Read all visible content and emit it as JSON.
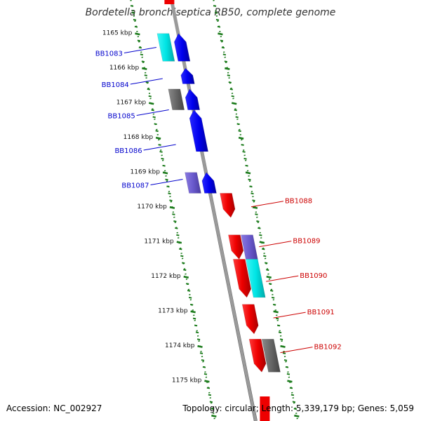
{
  "title": "Bordetella bronchiseptica RB50, complete genome",
  "footer": {
    "accession": "Accession: NC_002927",
    "summary": "Topology: circular; Length: 5,339,179 bp; Genes: 5,059"
  },
  "colors": {
    "forward_label": "#0000cc",
    "reverse_label": "#cc0000",
    "blue": "#0000ee",
    "cyan": "#00e5e5",
    "gray": "#666666",
    "purple": "#6a5acd",
    "red": "#ee0000",
    "tick_green": "#1a7a1a",
    "backbone": "#888888"
  },
  "scale": {
    "start_kbp": 1164.4,
    "kbp_per_step": 1,
    "ticks": [
      {
        "kbp": 1165,
        "label": "1165 kbp"
      },
      {
        "kbp": 1166,
        "label": "1166 kbp"
      },
      {
        "kbp": 1167,
        "label": "1167 kbp"
      },
      {
        "kbp": 1168,
        "label": "1168 kbp"
      },
      {
        "kbp": 1169,
        "label": "1169 kbp"
      },
      {
        "kbp": 1170,
        "label": "1170 kbp"
      },
      {
        "kbp": 1171,
        "label": "1171 kbp"
      },
      {
        "kbp": 1172,
        "label": "1172 kbp"
      },
      {
        "kbp": 1173,
        "label": "1173 kbp"
      },
      {
        "kbp": 1174,
        "label": "1174 kbp"
      },
      {
        "kbp": 1175,
        "label": "1175 kbp"
      }
    ]
  },
  "gene_labels": {
    "forward": [
      "BB1083",
      "BB1084",
      "BB1085",
      "BB1086",
      "BB1087"
    ],
    "reverse": [
      "BB1088",
      "BB1089",
      "BB1090",
      "BB1091",
      "BB1092"
    ]
  },
  "features": [
    {
      "strand": "+",
      "track": "outer",
      "start": 1165.0,
      "end": 1165.8,
      "color": "cyan",
      "shape": "box"
    },
    {
      "strand": "+",
      "track": "inner",
      "start": 1165.0,
      "end": 1165.8,
      "color": "blue",
      "shape": "arrow"
    },
    {
      "strand": "+",
      "track": "inner",
      "start": 1166.0,
      "end": 1166.45,
      "color": "blue",
      "shape": "arrow"
    },
    {
      "strand": "+",
      "track": "outer",
      "start": 1166.6,
      "end": 1167.2,
      "color": "gray",
      "shape": "box"
    },
    {
      "strand": "+",
      "track": "inner",
      "start": 1166.6,
      "end": 1167.2,
      "color": "blue",
      "shape": "arrow"
    },
    {
      "strand": "+",
      "track": "inner",
      "start": 1167.2,
      "end": 1168.4,
      "color": "blue",
      "shape": "arrow"
    },
    {
      "strand": "+",
      "track": "outer",
      "start": 1169.0,
      "end": 1169.6,
      "color": "purple",
      "shape": "box"
    },
    {
      "strand": "+",
      "track": "inner",
      "start": 1169.0,
      "end": 1169.6,
      "color": "blue",
      "shape": "arrow"
    },
    {
      "strand": "-",
      "track": "inner",
      "start": 1169.6,
      "end": 1170.3,
      "color": "red",
      "shape": "arrow"
    },
    {
      "strand": "-",
      "track": "inner",
      "start": 1170.8,
      "end": 1171.5,
      "color": "red",
      "shape": "arrow"
    },
    {
      "strand": "-",
      "track": "outer",
      "start": 1170.8,
      "end": 1171.5,
      "color": "purple",
      "shape": "box"
    },
    {
      "strand": "-",
      "track": "inner",
      "start": 1171.5,
      "end": 1172.6,
      "color": "red",
      "shape": "arrow"
    },
    {
      "strand": "-",
      "track": "outer",
      "start": 1171.5,
      "end": 1172.6,
      "color": "cyan",
      "shape": "box"
    },
    {
      "strand": "-",
      "track": "inner",
      "start": 1172.8,
      "end": 1173.65,
      "color": "red",
      "shape": "arrow"
    },
    {
      "strand": "-",
      "track": "inner",
      "start": 1173.8,
      "end": 1174.75,
      "color": "red",
      "shape": "arrow"
    },
    {
      "strand": "-",
      "track": "outer",
      "start": 1173.8,
      "end": 1174.75,
      "color": "gray",
      "shape": "box"
    }
  ]
}
